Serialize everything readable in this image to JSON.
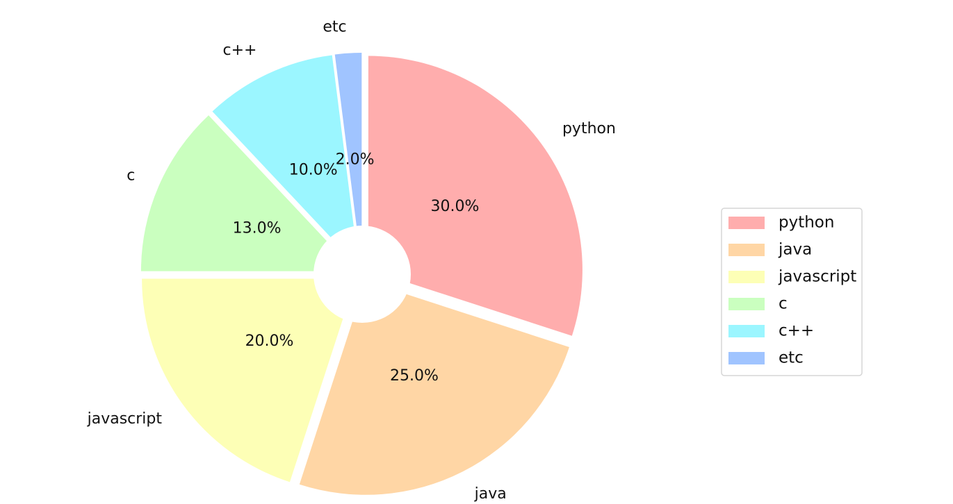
{
  "chart_data": {
    "type": "pie",
    "categories": [
      "python",
      "java",
      "javascript",
      "c",
      "c++",
      "etc"
    ],
    "values": [
      30,
      25,
      20,
      13,
      10,
      2
    ],
    "percent_labels": [
      "30.0%",
      "25.0%",
      "20.0%",
      "13.0%",
      "10.0%",
      "2.0%"
    ],
    "colors": [
      "#ffadad",
      "#ffd6a5",
      "#fdffb6",
      "#caffbf",
      "#9bf6ff",
      "#a0c4ff"
    ],
    "donut": true,
    "exploded": true,
    "start_angle": "90 degrees (12 o'clock), clockwise",
    "legend": {
      "position": "right",
      "entries": [
        "python",
        "java",
        "javascript",
        "c",
        "c++",
        "etc"
      ]
    }
  }
}
